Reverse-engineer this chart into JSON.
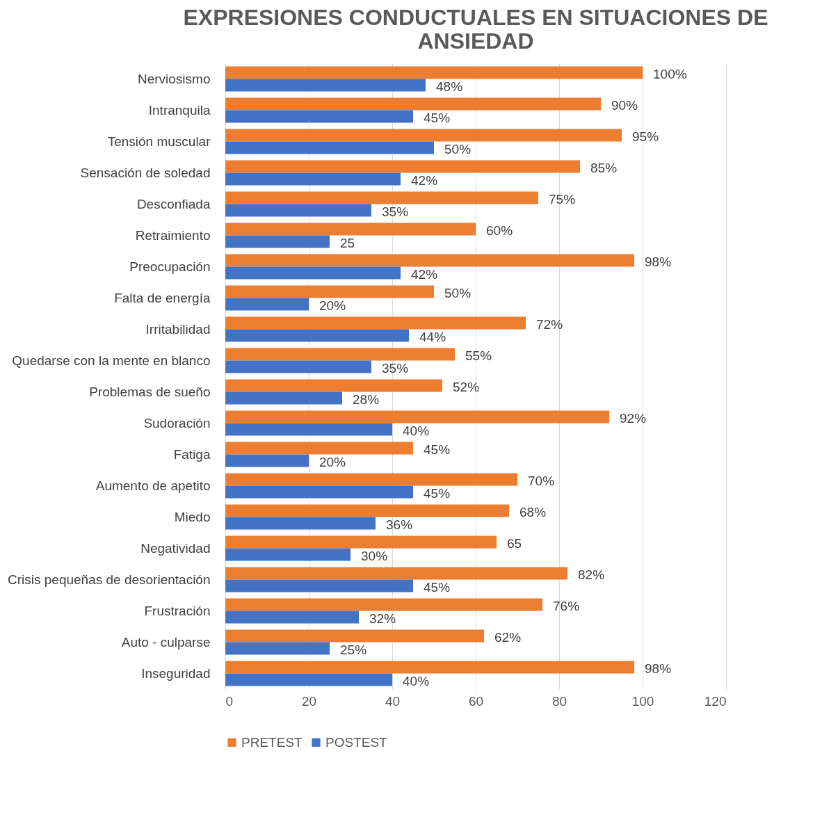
{
  "chart_data": {
    "type": "bar",
    "orientation": "horizontal",
    "title": "EXPRESIONES CONDUCTUALES EN SITUACIONES DE ANSIEDAD",
    "categories": [
      "Nerviosismo",
      "Intranquila",
      "Tensión muscular",
      "Sensación de soledad",
      "Desconfiada",
      "Retraimiento",
      "Preocupación",
      "Falta de energía",
      "Irritabilidad",
      "Quedarse con la mente en blanco",
      "Problemas de sueño",
      "Sudoración",
      "Fatiga",
      "Aumento de apetito",
      "Miedo",
      "Negatividad",
      "Crisis pequeñas de desorientación",
      "Frustración",
      "Auto - culparse",
      "Inseguridad"
    ],
    "series": [
      {
        "name": "PRETEST",
        "color": "#ed7d31",
        "values": [
          100,
          90,
          95,
          85,
          75,
          60,
          98,
          50,
          72,
          55,
          52,
          92,
          45,
          70,
          68,
          65,
          82,
          76,
          62,
          98
        ],
        "value_labels": [
          "100%",
          "90%",
          "95%",
          "85%",
          "75%",
          "60%",
          "98%",
          "50%",
          "72%",
          "55%",
          "52%",
          "92%",
          "45%",
          "70%",
          "68%",
          "65",
          "82%",
          "76%",
          "62%",
          "98%"
        ]
      },
      {
        "name": "POSTEST",
        "color": "#4472c4",
        "values": [
          48,
          45,
          50,
          42,
          35,
          25,
          42,
          20,
          44,
          35,
          28,
          40,
          20,
          45,
          36,
          30,
          45,
          32,
          25,
          40
        ],
        "value_labels": [
          "48%",
          "45%",
          "50%",
          "42%",
          "35%",
          "25",
          "42%",
          "20%",
          "44%",
          "35%",
          "28%",
          "40%",
          "20%",
          "45%",
          "36%",
          "30%",
          "45%",
          "32%",
          "25%",
          "40%"
        ]
      }
    ],
    "xlim": [
      0,
      120
    ],
    "xticks": [
      0,
      20,
      40,
      60,
      80,
      100,
      120
    ],
    "grid": "x",
    "legend": "bottom"
  }
}
